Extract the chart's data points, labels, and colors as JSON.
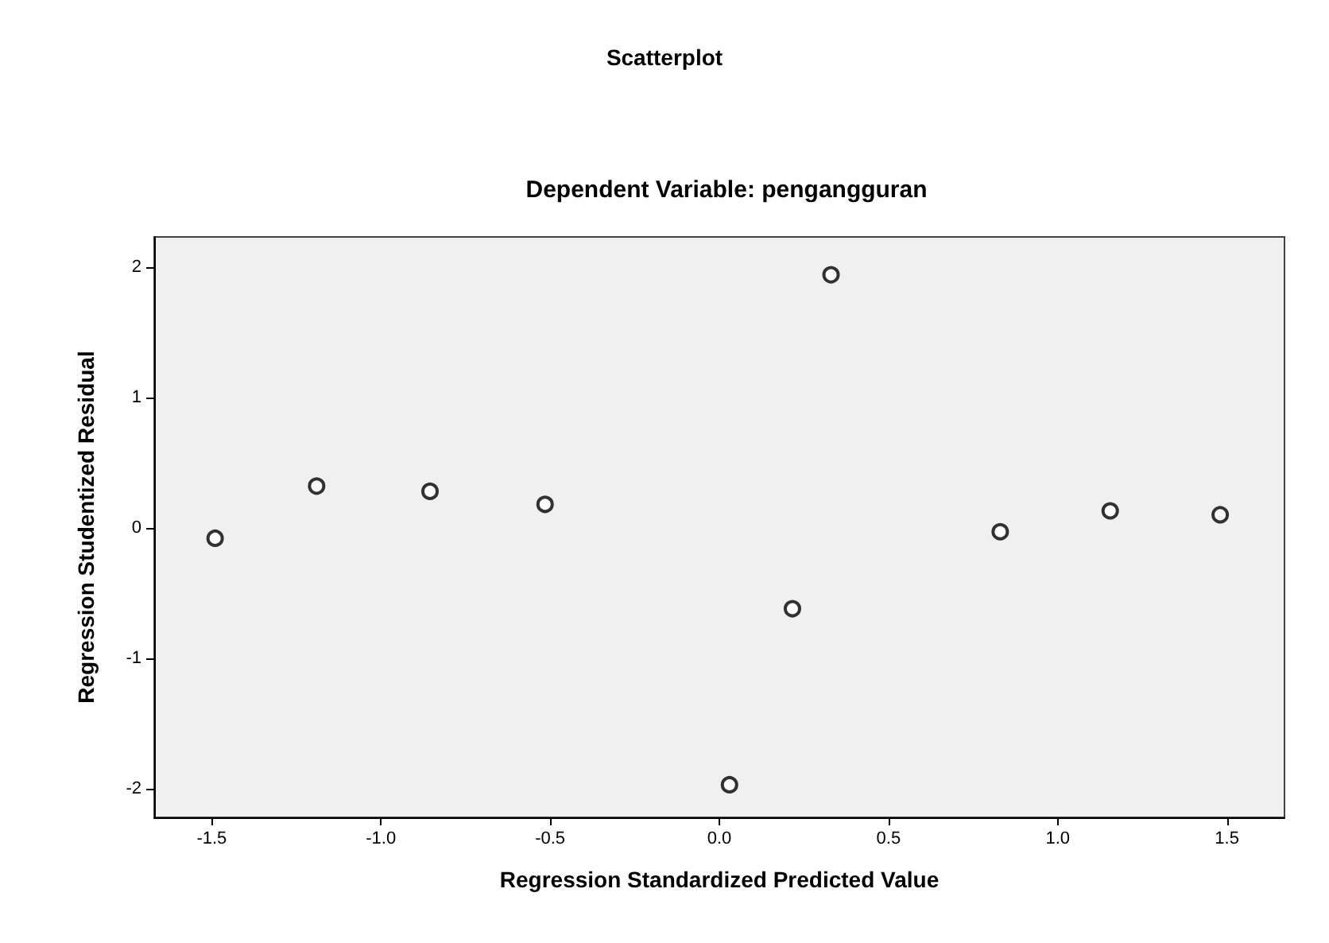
{
  "chart_data": {
    "type": "scatter",
    "title": "Scatterplot",
    "subtitle": "Dependent Variable: pengangguran",
    "xlabel": "Regression Standardized Predicted Value",
    "ylabel": "Regression Studentized Residual",
    "x": [
      -1.49,
      -1.19,
      -0.855,
      -0.515,
      0.03,
      0.216,
      0.33,
      0.83,
      1.155,
      1.48
    ],
    "values": [
      -0.08,
      0.32,
      0.28,
      0.18,
      -1.97,
      -0.62,
      1.94,
      -0.03,
      0.13,
      0.1
    ],
    "color": "#000000",
    "marker": "circle",
    "grid": false,
    "xlim": [
      -1.67,
      1.67
    ],
    "ylim": [
      -2.22,
      2.23
    ],
    "xticks": [
      {
        "value": -1.5,
        "label": "-1.5"
      },
      {
        "value": -1,
        "label": "-1.0"
      },
      {
        "value": -0.5,
        "label": "-0.5"
      },
      {
        "value": 0,
        "label": "0.0"
      },
      {
        "value": 0.5,
        "label": "0.5"
      },
      {
        "value": 1,
        "label": "1.0"
      },
      {
        "value": 1.5,
        "label": "1.5"
      }
    ],
    "yticks": [
      -2,
      -1,
      0,
      1,
      2
    ]
  }
}
